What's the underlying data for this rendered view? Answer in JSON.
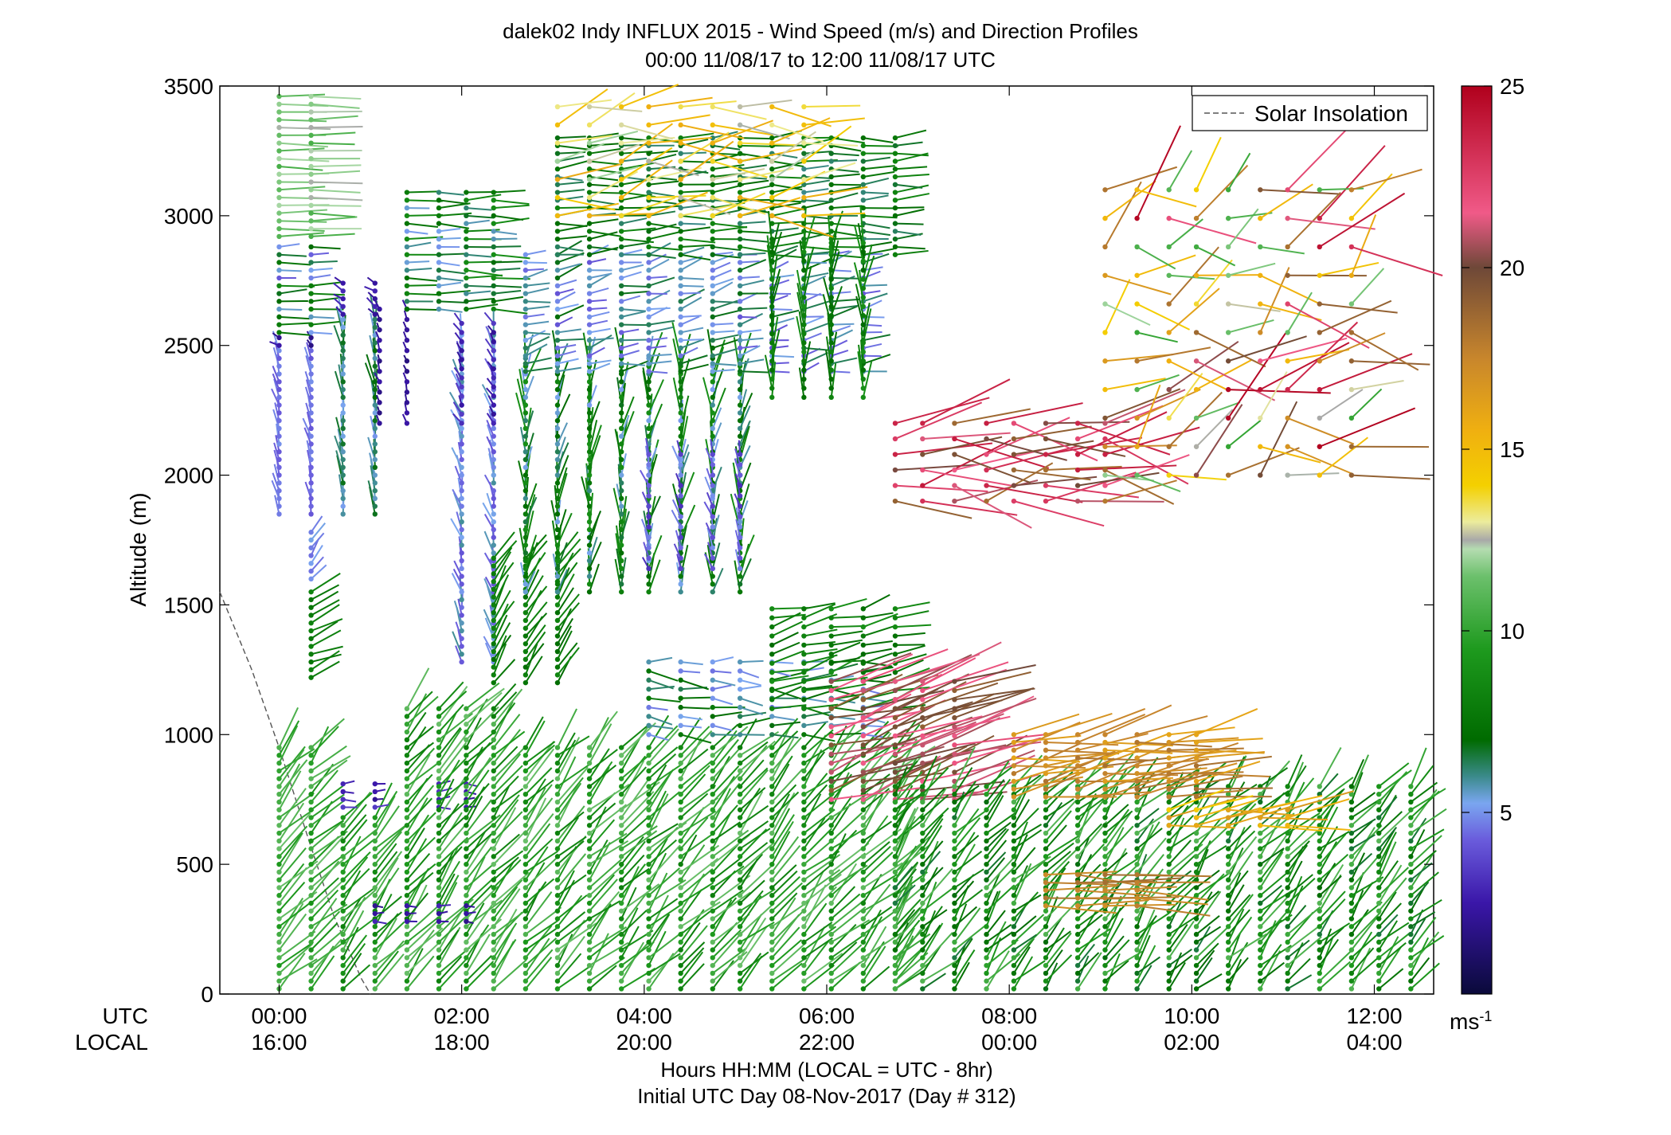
{
  "chart_data": {
    "type": "scatter",
    "title": "dalek02 Indy INFLUX 2015 - Wind Speed (m/s) and Direction Profiles",
    "subtitle": "00:00 11/08/17 to 12:00 11/08/17  UTC",
    "ylabel": "Altitude (m)",
    "xlabel": "Hours HH:MM  (LOCAL = UTC - 8hr)",
    "xlabel2": "Initial UTC Day 08-Nov-2017 (Day # 312)",
    "xlim_hours": [
      -0.65,
      12.65
    ],
    "ylim": [
      0,
      3500
    ],
    "yticks": [
      0,
      500,
      1000,
      1500,
      2000,
      2500,
      3000,
      3500
    ],
    "ytick_labels": [
      "0",
      "500",
      "1000",
      "1500",
      "2000",
      "2500",
      "3000",
      "3500"
    ],
    "xticks_hours": [
      0,
      2,
      4,
      6,
      8,
      10,
      12
    ],
    "utc_row_label": "UTC",
    "local_row_label": "LOCAL",
    "utc_tick_labels": [
      "00:00",
      "02:00",
      "04:00",
      "06:00",
      "08:00",
      "10:00",
      "12:00"
    ],
    "local_tick_labels": [
      "16:00",
      "18:00",
      "20:00",
      "22:00",
      "00:00",
      "02:00",
      "04:00"
    ],
    "legend": {
      "entries": [
        "Solar Insolation"
      ],
      "placement": "top-right"
    },
    "colorbar": {
      "label": "ms-1",
      "label_base": "ms",
      "label_sup": "-1",
      "min": 0,
      "max": 25,
      "ticks": [
        5,
        10,
        15,
        20,
        25
      ],
      "tick_labels": [
        "5",
        "10",
        "15",
        "20",
        "25"
      ]
    },
    "solar_insolation": {
      "hours": [
        -0.65,
        -0.3,
        0.0,
        0.3,
        0.6,
        0.9,
        1.0
      ],
      "altitude": [
        1550,
        1250,
        950,
        620,
        300,
        60,
        0
      ]
    },
    "profile_groups": [
      {
        "hours": [
          0.0,
          0.35
        ],
        "z0": 20,
        "z1": 950,
        "dz": 30,
        "speed": [
          9,
          11.5
        ],
        "dir": [
          205,
          240
        ]
      },
      {
        "hours": [
          0.0,
          0.35
        ],
        "z0": 1850,
        "z1": 2480,
        "dz": 30,
        "speed": [
          4,
          5
        ],
        "dir": [
          155,
          180
        ]
      },
      {
        "hours": [
          0.0,
          0.35
        ],
        "z0": 2500,
        "z1": 2530,
        "dz": 30,
        "speed": [
          1.5,
          2.5
        ],
        "dir": [
          110,
          150
        ]
      },
      {
        "hours": [
          0.0,
          0.35
        ],
        "z0": 2550,
        "z1": 2900,
        "dz": 30,
        "speed": [
          4,
          9
        ],
        "dir": [
          260,
          275
        ]
      },
      {
        "hours": [
          0.0,
          0.35
        ],
        "z0": 2920,
        "z1": 3480,
        "dz": 30,
        "speed": [
          10.5,
          12.5
        ],
        "dir": [
          265,
          275
        ]
      },
      {
        "hours": [
          0.35
        ],
        "z0": 1220,
        "z1": 1550,
        "dz": 30,
        "speed": [
          7.5,
          8.5
        ],
        "dir": [
          235,
          260
        ]
      },
      {
        "hours": [
          0.35
        ],
        "z0": 1600,
        "z1": 1800,
        "dz": 30,
        "speed": [
          4.5,
          5.5
        ],
        "dir": [
          200,
          230
        ]
      },
      {
        "hours": [
          0.7,
          1.05
        ],
        "z0": 20,
        "z1": 700,
        "dz": 30,
        "speed": [
          8,
          11
        ],
        "dir": [
          205,
          235
        ]
      },
      {
        "hours": [
          0.7,
          1.05,
          1.75,
          2.05
        ],
        "z0": 720,
        "z1": 830,
        "dz": 30,
        "speed": [
          2,
          3.5
        ],
        "dir": [
          255,
          285
        ]
      },
      {
        "hours": [
          0.7,
          1.05
        ],
        "z0": 1850,
        "z1": 2600,
        "dz": 30,
        "speed": [
          5,
          7
        ],
        "dir": [
          160,
          185
        ]
      },
      {
        "hours": [
          0.7,
          1.05
        ],
        "z0": 2620,
        "z1": 2760,
        "dz": 30,
        "speed": [
          2,
          3
        ],
        "dir": [
          110,
          140
        ]
      },
      {
        "hours": [
          1.1,
          1.4
        ],
        "z0": 2200,
        "z1": 2650,
        "dz": 40,
        "speed": [
          1.5,
          2.5
        ],
        "dir": [
          150,
          175
        ]
      },
      {
        "hours": [
          1.4,
          1.75,
          2.05,
          2.35
        ],
        "z0": 20,
        "z1": 1100,
        "dz": 30,
        "speed": [
          8,
          11.5
        ],
        "dir": [
          205,
          235
        ]
      },
      {
        "hours": [
          1.05,
          1.4,
          1.75,
          2.05
        ],
        "z0": 280,
        "z1": 340,
        "dz": 30,
        "speed": [
          1.5,
          3
        ],
        "dir": [
          255,
          285
        ]
      },
      {
        "hours": [
          1.4,
          1.75,
          2.05,
          2.35
        ],
        "z0": 2640,
        "z1": 3100,
        "dz": 30,
        "speed": [
          5,
          9
        ],
        "dir": [
          260,
          280
        ]
      },
      {
        "hours": [
          2.0,
          2.35
        ],
        "z0": 1280,
        "z1": 2560,
        "dz": 30,
        "speed": [
          4,
          6
        ],
        "dir": [
          150,
          185
        ]
      },
      {
        "hours": [
          2.0,
          2.35
        ],
        "z0": 2200,
        "z1": 2600,
        "dz": 35,
        "speed": [
          2,
          3.5
        ],
        "dir": [
          135,
          165
        ]
      },
      {
        "hours": [
          2.35,
          2.7,
          3.05
        ],
        "z0": 1200,
        "z1": 1700,
        "dz": 30,
        "speed": [
          7,
          8.5
        ],
        "dir": [
          200,
          225
        ]
      },
      {
        "hours": [
          2.7,
          3.05,
          3.4,
          3.75,
          4.05,
          4.4,
          4.75,
          5.05,
          5.4,
          5.75,
          6.05,
          6.4,
          6.75
        ],
        "z0": 20,
        "z1": 950,
        "dz": 30,
        "speed": [
          8,
          11.5
        ],
        "dir": [
          205,
          240
        ]
      },
      {
        "hours": [
          2.7,
          3.05,
          3.4,
          3.75,
          4.05,
          4.4,
          4.75,
          5.05
        ],
        "z0": 1550,
        "z1": 2450,
        "dz": 30,
        "speed": [
          5,
          9
        ],
        "dir": [
          165,
          205
        ]
      },
      {
        "hours": [
          2.7,
          3.05,
          3.4,
          3.75,
          4.05,
          4.4,
          4.75,
          5.05,
          5.4,
          5.75,
          6.05,
          6.4
        ],
        "z0": 2400,
        "z1": 2850,
        "dz": 30,
        "speed": [
          4,
          7
        ],
        "dir": [
          240,
          275
        ]
      },
      {
        "hours": [
          3.05,
          3.4,
          3.75,
          4.05,
          4.4,
          4.75,
          5.05,
          5.4,
          5.75,
          6.05,
          6.4,
          6.75
        ],
        "z0": 2850,
        "z1": 3300,
        "dz": 30,
        "speed": [
          6,
          8.5
        ],
        "dir": [
          255,
          280
        ]
      },
      {
        "hours": [
          4.05,
          4.4,
          4.75,
          5.05
        ],
        "z0": 1640,
        "z1": 2100,
        "dz": 40,
        "speed": [
          3,
          5
        ],
        "dir": [
          150,
          180
        ]
      },
      {
        "hours": [
          4.05,
          4.4,
          4.75,
          5.05,
          5.4,
          5.75,
          6.05,
          6.4
        ],
        "z0": 1000,
        "z1": 1300,
        "dz": 35,
        "speed": [
          4.5,
          8
        ],
        "dir": [
          255,
          290
        ]
      },
      {
        "hours": [
          5.4,
          5.75,
          6.05,
          6.4
        ],
        "z0": 2300,
        "z1": 2900,
        "dz": 35,
        "speed": [
          7,
          9
        ],
        "dir": [
          165,
          200
        ]
      },
      {
        "hours": [
          5.4,
          5.75,
          6.05,
          6.4,
          6.75
        ],
        "z0": 1100,
        "z1": 1500,
        "dz": 35,
        "speed": [
          7,
          9
        ],
        "dir": [
          240,
          270
        ]
      },
      {
        "hours": [
          6.05,
          6.4,
          6.75,
          7.05,
          7.4
        ],
        "z0": 750,
        "z1": 1220,
        "dz": 35,
        "speed": [
          19,
          22
        ],
        "dir": [
          240,
          265
        ]
      },
      {
        "hours": [
          6.75,
          7.05,
          7.4,
          7.75,
          8.05,
          8.4,
          8.75,
          9.05,
          9.4,
          9.75,
          10.05,
          10.4,
          10.75,
          11.05,
          11.4,
          11.75,
          12.05,
          12.4
        ],
        "z0": 20,
        "z1": 800,
        "dz": 30,
        "speed": [
          6.5,
          11
        ],
        "dir": [
          200,
          240
        ]
      },
      {
        "hours": [
          8.05,
          8.4,
          8.75,
          9.05,
          9.4,
          9.75,
          10.05
        ],
        "z0": 760,
        "z1": 1000,
        "dz": 30,
        "speed": [
          16,
          18.5
        ],
        "dir": [
          245,
          275
        ]
      },
      {
        "hours": [
          8.4,
          8.75,
          9.05,
          9.4
        ],
        "z0": 340,
        "z1": 480,
        "dz": 30,
        "speed": [
          17,
          18.5
        ],
        "dir": [
          265,
          280
        ]
      },
      {
        "hours": [
          9.75,
          10.05,
          10.4,
          10.75,
          11.05
        ],
        "z0": 650,
        "z1": 730,
        "dz": 30,
        "speed": [
          14,
          17
        ],
        "dir": [
          250,
          275
        ]
      },
      {
        "hours": [
          6.75,
          7.05,
          7.4,
          7.75,
          8.05,
          8.4,
          8.75,
          9.05
        ],
        "z0": 1900,
        "z1": 2200,
        "dz": 60,
        "speed": [
          18,
          24
        ],
        "dir": [
          240,
          300
        ]
      },
      {
        "hours": [
          9.05,
          9.4,
          9.75,
          10.05,
          10.4,
          10.75,
          11.05,
          11.4,
          11.75
        ],
        "z0": 2000,
        "z1": 3100,
        "dz": 110,
        "speed": [
          10,
          25
        ],
        "dir": [
          200,
          300
        ]
      },
      {
        "hours": [
          3.05,
          3.4,
          3.75,
          4.05,
          4.4,
          4.75,
          5.05,
          5.4,
          5.75
        ],
        "z0": 3000,
        "z1": 3450,
        "dz": 70,
        "speed": [
          12,
          16
        ],
        "dir": [
          230,
          290
        ]
      }
    ]
  }
}
